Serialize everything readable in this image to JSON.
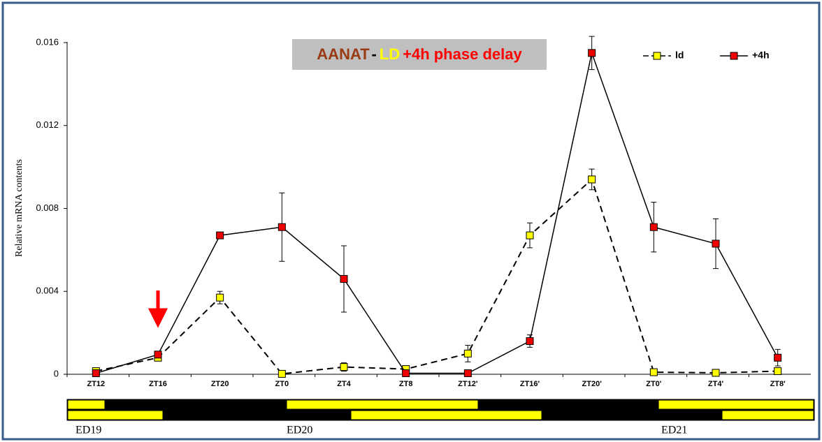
{
  "chart_data": {
    "type": "line",
    "title_parts": [
      {
        "text": "AANAT",
        "color": "#9a3a12"
      },
      {
        "text": "-",
        "color": "#000000"
      },
      {
        "text": "LD",
        "color": "#ffff00"
      },
      {
        "text": "+4h phase delay",
        "color": "#ff0000"
      }
    ],
    "y_label": "Relative mRNA contents",
    "categories": [
      "ZT12",
      "ZT16",
      "ZT20",
      "ZT0",
      "ZT4",
      "ZT8",
      "ZT12'",
      "ZT16'",
      "ZT20'",
      "ZT0'",
      "ZT4'",
      "ZT8'"
    ],
    "series": [
      {
        "name": "ld",
        "color": "#ffff00",
        "dashed": true,
        "values": [
          0.00015,
          0.0008,
          0.0037,
          2e-05,
          0.00035,
          0.00025,
          0.001,
          0.0067,
          0.0094,
          0.0001,
          7e-05,
          0.00015
        ],
        "errors": [
          null,
          null,
          0.0003,
          null,
          0.0002,
          null,
          0.0004,
          0.0006,
          0.0005,
          null,
          null,
          null
        ]
      },
      {
        "name": "+4h",
        "color": "#ee0000",
        "dashed": false,
        "values": [
          5e-05,
          0.00095,
          0.0067,
          0.0071,
          0.0046,
          5e-05,
          5e-05,
          0.0016,
          0.0155,
          0.0071,
          0.0063,
          0.0008
        ],
        "errors": [
          null,
          null,
          null,
          0.00165,
          0.0016,
          null,
          null,
          0.0003,
          0.0008,
          0.0012,
          0.0012,
          0.0004
        ]
      }
    ],
    "ylim": [
      0,
      0.016
    ],
    "yticks": [
      0,
      0.004,
      0.008,
      0.012,
      0.016
    ],
    "day_labels": [
      "ED19",
      "ED20",
      "ED21"
    ]
  }
}
